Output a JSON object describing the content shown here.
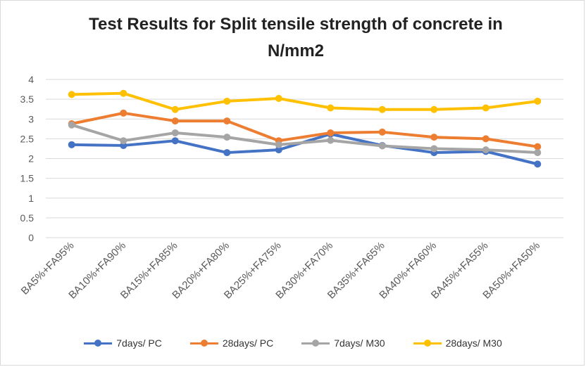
{
  "chart_data": {
    "type": "line",
    "title_line1": "Test Results for Split tensile strength of concrete in",
    "title_line2": "N/mm2",
    "categories": [
      "BA5%+FA95%",
      "BA10%+FA90%",
      "BA15%+FA85%",
      "BA20%+FA80%",
      "BA25%+FA75%",
      "BA30%+FA70%",
      "BA35%+FA65%",
      "BA40%+FA60%",
      "BA45%+FA55%",
      "BA50%+FA50%"
    ],
    "ylim": [
      0,
      4
    ],
    "yticks": [
      "0",
      "0.5",
      "1",
      "1.5",
      "2",
      "2.5",
      "3",
      "3.5",
      "4"
    ],
    "grid": true,
    "legend_position": "bottom",
    "series": [
      {
        "name": "7days/ PC",
        "color": "#4472c4",
        "values": [
          2.35,
          2.33,
          2.45,
          2.15,
          2.22,
          2.62,
          2.33,
          2.15,
          2.18,
          1.86
        ]
      },
      {
        "name": "28days/ PC",
        "color": "#ed7d31",
        "values": [
          2.88,
          3.15,
          2.95,
          2.95,
          2.45,
          2.65,
          2.67,
          2.54,
          2.5,
          2.3
        ]
      },
      {
        "name": "7days/ M30",
        "color": "#a5a5a5",
        "values": [
          2.85,
          2.45,
          2.65,
          2.54,
          2.35,
          2.46,
          2.32,
          2.25,
          2.22,
          2.15
        ]
      },
      {
        "name": "28days/ M30",
        "color": "#ffc000",
        "values": [
          3.62,
          3.65,
          3.24,
          3.45,
          3.52,
          3.28,
          3.24,
          3.24,
          3.28,
          3.45
        ]
      }
    ]
  }
}
